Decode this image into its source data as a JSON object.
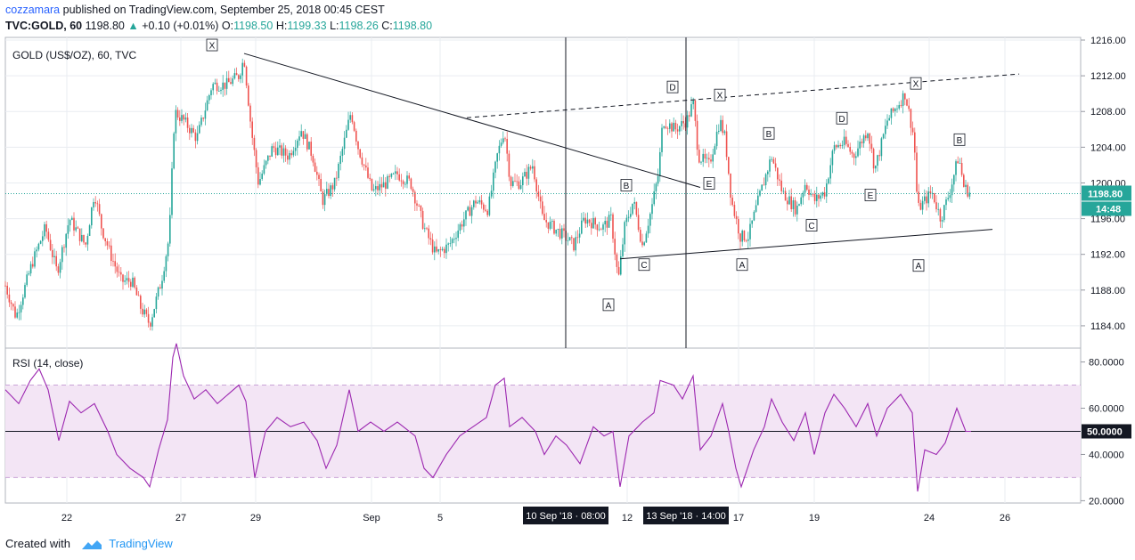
{
  "header": {
    "author": "cozzamara",
    "published_text": "published on TradingView.com, September 25, 2018 00:45 CEST",
    "symbol": "TVC:GOLD, 60",
    "last": "1198.80",
    "change_arrow": "▲",
    "change": "+0.10 (+0.01%)",
    "o_label": "O:",
    "o_value": "1198.50",
    "h_label": "H:",
    "h_value": "1199.33",
    "l_label": "L:",
    "l_value": "1198.26",
    "c_label": "C:",
    "c_value": "1198.80"
  },
  "footer": {
    "created_with": "Created with",
    "brand": "TradingView"
  },
  "colors": {
    "up": "#26a69a",
    "down": "#ef5350",
    "rsi": "#9c27b0",
    "rsi_band": "#f3e5f5",
    "grid": "#e9ecf1",
    "price_tag": "#26a69a"
  },
  "chart_data": [
    {
      "type": "candlestick",
      "title": "GOLD (US$/OZ), 60, TVC",
      "price_axis": {
        "ticks": [
          "1216.00",
          "1212.00",
          "1208.00",
          "1204.00",
          "1200.00",
          "1196.00",
          "1192.00",
          "1188.00",
          "1184.00"
        ],
        "ylim": [
          1181.5,
          1216.3
        ]
      },
      "time_axis": {
        "ticks": [
          "22",
          "27",
          "29",
          "Sep",
          "5",
          "12",
          "17",
          "19",
          "24",
          "26"
        ],
        "highlight_labels": [
          "10 Sep '18 · 08:00",
          "13 Sep '18 · 14:00"
        ]
      },
      "last_price_label": "1198.80",
      "countdown_label": "14:48",
      "path_nodes": [
        [
          0,
          1188.5
        ],
        [
          12,
          1185
        ],
        [
          30,
          1191
        ],
        [
          45,
          1195
        ],
        [
          58,
          1190
        ],
        [
          72,
          1196
        ],
        [
          90,
          1193
        ],
        [
          100,
          1199
        ],
        [
          108,
          1195
        ],
        [
          118,
          1192
        ],
        [
          130,
          1189
        ],
        [
          142,
          1189
        ],
        [
          152,
          1186
        ],
        [
          162,
          1184.2
        ],
        [
          175,
          1189
        ],
        [
          184,
          1194
        ],
        [
          190,
          1208
        ],
        [
          200,
          1207
        ],
        [
          215,
          1205
        ],
        [
          232,
          1211
        ],
        [
          248,
          1211
        ],
        [
          262,
          1212
        ],
        [
          268,
          1214
        ],
        [
          276,
          1206
        ],
        [
          284,
          1200
        ],
        [
          300,
          1204
        ],
        [
          318,
          1203
        ],
        [
          332,
          1206
        ],
        [
          345,
          1203
        ],
        [
          356,
          1198
        ],
        [
          370,
          1200
        ],
        [
          388,
          1208
        ],
        [
          396,
          1204
        ],
        [
          412,
          1199
        ],
        [
          428,
          1200
        ],
        [
          440,
          1201
        ],
        [
          455,
          1200
        ],
        [
          470,
          1195
        ],
        [
          483,
          1192
        ],
        [
          498,
          1193
        ],
        [
          515,
          1196
        ],
        [
          528,
          1198
        ],
        [
          542,
          1197
        ],
        [
          552,
          1203
        ],
        [
          560,
          1206
        ],
        [
          567,
          1200
        ],
        [
          578,
          1200
        ],
        [
          592,
          1202
        ],
        [
          603,
          1196
        ],
        [
          615,
          1195
        ],
        [
          628,
          1194
        ],
        [
          638,
          1193
        ],
        [
          650,
          1196
        ],
        [
          670,
          1195
        ],
        [
          680,
          1196
        ],
        [
          688,
          1189
        ],
        [
          695,
          1195
        ],
        [
          705,
          1198
        ],
        [
          715,
          1193
        ],
        [
          725,
          1197
        ],
        [
          733,
          1201
        ],
        [
          738,
          1207
        ],
        [
          752,
          1206
        ],
        [
          765,
          1207
        ],
        [
          772,
          1209
        ],
        [
          778,
          1203
        ],
        [
          790,
          1202
        ],
        [
          802,
          1207
        ],
        [
          808,
          1205
        ],
        [
          815,
          1198
        ],
        [
          825,
          1194
        ],
        [
          834,
          1194
        ],
        [
          845,
          1198
        ],
        [
          860,
          1203
        ],
        [
          872,
          1199
        ],
        [
          888,
          1197
        ],
        [
          898,
          1200
        ],
        [
          908,
          1198
        ],
        [
          920,
          1199
        ],
        [
          930,
          1204
        ],
        [
          942,
          1204.5
        ],
        [
          952,
          1203
        ],
        [
          968,
          1206
        ],
        [
          976,
          1201.5
        ],
        [
          990,
          1207
        ],
        [
          1010,
          1210
        ],
        [
          1020,
          1205
        ],
        [
          1024,
          1197
        ],
        [
          1032,
          1198
        ],
        [
          1040,
          1199
        ],
        [
          1050,
          1196
        ],
        [
          1060,
          1199
        ],
        [
          1070,
          1203
        ],
        [
          1076,
          1199.5
        ],
        [
          1084,
          1198.8
        ]
      ],
      "trendlines": [
        {
          "style": "solid",
          "points": [
            [
              268,
              1214.5
            ],
            [
              780,
              1199.5
            ]
          ]
        },
        {
          "style": "dashed",
          "points": [
            [
              518,
              1207.3
            ],
            [
              1138,
              1212.2
            ]
          ]
        },
        {
          "style": "solid",
          "points": [
            [
              690,
              1191.5
            ],
            [
              1108,
              1194.8
            ]
          ]
        }
      ],
      "vertical_lines_x": [
        635,
        770
      ],
      "annotations": [
        {
          "text": "X",
          "x": 238,
          "price": 1215.4
        },
        {
          "text": "D",
          "x": 755,
          "price": 1210.7
        },
        {
          "text": "X",
          "x": 808,
          "price": 1209.8
        },
        {
          "text": "X",
          "x": 1028,
          "price": 1211.1
        },
        {
          "text": "D",
          "x": 945,
          "price": 1207.2
        },
        {
          "text": "B",
          "x": 863,
          "price": 1205.5
        },
        {
          "text": "B",
          "x": 1077,
          "price": 1204.8
        },
        {
          "text": "B",
          "x": 703,
          "price": 1199.7
        },
        {
          "text": "E",
          "x": 796,
          "price": 1199.9
        },
        {
          "text": "E",
          "x": 977,
          "price": 1198.6
        },
        {
          "text": "C",
          "x": 911,
          "price": 1195.2
        },
        {
          "text": "C",
          "x": 723,
          "price": 1190.8
        },
        {
          "text": "A",
          "x": 833,
          "price": 1190.8
        },
        {
          "text": "A",
          "x": 1031,
          "price": 1190.7
        },
        {
          "text": "A",
          "x": 683,
          "price": 1186.3
        }
      ]
    },
    {
      "type": "line",
      "title": "RSI (14, close)",
      "ticks": [
        "80.0000",
        "60.0000",
        "40.0000",
        "20.0000"
      ],
      "ylim": [
        19,
        86
      ],
      "band": [
        30,
        70
      ],
      "midline": 50,
      "last_value_label": "50.0000",
      "series": [
        {
          "values": [
            [
              0,
              68
            ],
            [
              15,
              62
            ],
            [
              28,
              72
            ],
            [
              38,
              77
            ],
            [
              48,
              68
            ],
            [
              60,
              46
            ],
            [
              72,
              63
            ],
            [
              85,
              58
            ],
            [
              100,
              62
            ],
            [
              115,
              50
            ],
            [
              125,
              40
            ],
            [
              140,
              34
            ],
            [
              155,
              30
            ],
            [
              162,
              26
            ],
            [
              172,
              42
            ],
            [
              182,
              55
            ],
            [
              188,
              82
            ],
            [
              192,
              88
            ],
            [
              200,
              74
            ],
            [
              212,
              64
            ],
            [
              225,
              68
            ],
            [
              238,
              62
            ],
            [
              250,
              66
            ],
            [
              262,
              70
            ],
            [
              270,
              63
            ],
            [
              280,
              30
            ],
            [
              292,
              50
            ],
            [
              305,
              56
            ],
            [
              320,
              52
            ],
            [
              335,
              54
            ],
            [
              350,
              46
            ],
            [
              360,
              34
            ],
            [
              372,
              44
            ],
            [
              386,
              68
            ],
            [
              396,
              50
            ],
            [
              410,
              54
            ],
            [
              425,
              50
            ],
            [
              440,
              54
            ],
            [
              460,
              48
            ],
            [
              470,
              34
            ],
            [
              480,
              30
            ],
            [
              495,
              40
            ],
            [
              510,
              48
            ],
            [
              525,
              52
            ],
            [
              540,
              56
            ],
            [
              550,
              70
            ],
            [
              560,
              73
            ],
            [
              566,
              52
            ],
            [
              580,
              56
            ],
            [
              595,
              50
            ],
            [
              605,
              40
            ],
            [
              618,
              48
            ],
            [
              630,
              44
            ],
            [
              645,
              36
            ],
            [
              660,
              52
            ],
            [
              672,
              48
            ],
            [
              682,
              50
            ],
            [
              690,
              26
            ],
            [
              700,
              48
            ],
            [
              715,
              54
            ],
            [
              728,
              58
            ],
            [
              735,
              72
            ],
            [
              750,
              70
            ],
            [
              760,
              64
            ],
            [
              772,
              74
            ],
            [
              780,
              42
            ],
            [
              792,
              48
            ],
            [
              805,
              62
            ],
            [
              812,
              50
            ],
            [
              820,
              34
            ],
            [
              826,
              26
            ],
            [
              840,
              42
            ],
            [
              852,
              52
            ],
            [
              860,
              64
            ],
            [
              872,
              54
            ],
            [
              885,
              46
            ],
            [
              898,
              58
            ],
            [
              908,
              40
            ],
            [
              920,
              58
            ],
            [
              930,
              66
            ],
            [
              942,
              60
            ],
            [
              955,
              52
            ],
            [
              968,
              62
            ],
            [
              978,
              48
            ],
            [
              990,
              60
            ],
            [
              1005,
              66
            ],
            [
              1018,
              58
            ],
            [
              1024,
              24
            ],
            [
              1032,
              42
            ],
            [
              1045,
              40
            ],
            [
              1055,
              45
            ],
            [
              1068,
              60
            ],
            [
              1078,
              50
            ],
            [
              1084,
              50
            ]
          ]
        }
      ]
    }
  ]
}
